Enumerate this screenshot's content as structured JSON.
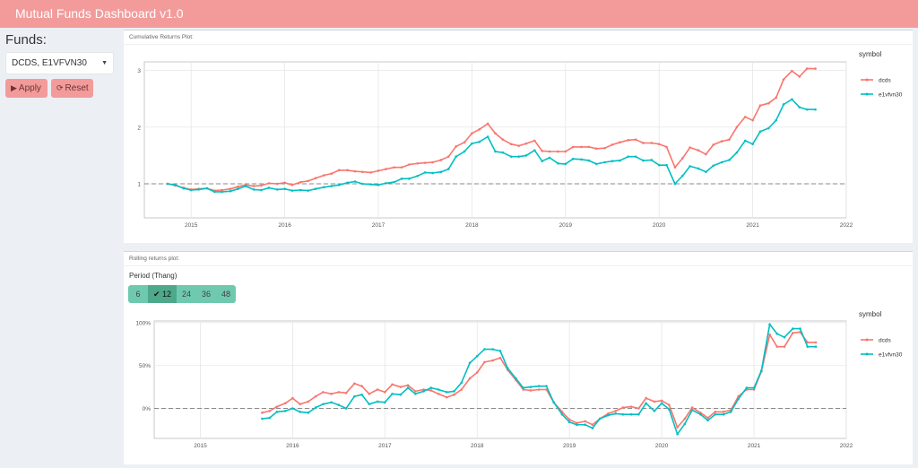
{
  "header": {
    "title": "Mutual Funds Dashboard v1.0"
  },
  "sidebar": {
    "funds_label": "Funds:",
    "fund_select_value": "DCDS, E1VFVN30",
    "apply_label": "Apply",
    "reset_label": "Reset"
  },
  "panel1": {
    "title": "Cumulative Returns Plot:"
  },
  "panel2": {
    "title": "Rolling returns plot:",
    "period_label": "Period (Thang)",
    "periods": [
      "6",
      "12",
      "24",
      "36",
      "48"
    ],
    "selected_period": "12"
  },
  "colors": {
    "header": "#f39b9b",
    "dcds": "#f8766d",
    "e1vfvn30": "#00bfc4",
    "period": "#6fc9ae"
  },
  "chart_data": [
    {
      "type": "line",
      "legend_title": "symbol",
      "legend_position": "right",
      "xticks": [
        "2015",
        "2016",
        "2017",
        "2018",
        "2019",
        "2020",
        "2021",
        "2022"
      ],
      "yticks": [
        "1",
        "2",
        "3"
      ],
      "xlim": [
        2014.5,
        2022.0
      ],
      "ylim": [
        0.4,
        3.15
      ],
      "reference_line": 1,
      "grid": true,
      "x": [
        2014.75,
        2014.83,
        2014.92,
        2015.0,
        2015.08,
        2015.17,
        2015.25,
        2015.33,
        2015.42,
        2015.5,
        2015.58,
        2015.67,
        2015.75,
        2015.83,
        2015.92,
        2016.0,
        2016.08,
        2016.17,
        2016.25,
        2016.33,
        2016.42,
        2016.5,
        2016.58,
        2016.67,
        2016.75,
        2016.83,
        2016.92,
        2017.0,
        2017.08,
        2017.17,
        2017.25,
        2017.33,
        2017.42,
        2017.5,
        2017.58,
        2017.67,
        2017.75,
        2017.83,
        2017.92,
        2018.0,
        2018.08,
        2018.17,
        2018.25,
        2018.33,
        2018.42,
        2018.5,
        2018.58,
        2018.67,
        2018.75,
        2018.83,
        2018.92,
        2019.0,
        2019.08,
        2019.17,
        2019.25,
        2019.33,
        2019.42,
        2019.5,
        2019.58,
        2019.67,
        2019.75,
        2019.83,
        2019.92,
        2020.0,
        2020.08,
        2020.17,
        2020.25,
        2020.33,
        2020.42,
        2020.5,
        2020.58,
        2020.67,
        2020.75,
        2020.83,
        2020.92,
        2021.0,
        2021.08,
        2021.17,
        2021.25,
        2021.33,
        2021.42,
        2021.5,
        2021.58,
        2021.67
      ],
      "series": [
        {
          "name": "dcds",
          "values": [
            1.0,
            0.97,
            0.93,
            0.9,
            0.91,
            0.92,
            0.88,
            0.89,
            0.91,
            0.95,
            0.98,
            0.96,
            0.97,
            1.01,
            1.0,
            1.02,
            0.98,
            1.03,
            1.05,
            1.1,
            1.15,
            1.18,
            1.24,
            1.24,
            1.22,
            1.21,
            1.2,
            1.23,
            1.26,
            1.29,
            1.29,
            1.34,
            1.36,
            1.37,
            1.38,
            1.42,
            1.48,
            1.66,
            1.73,
            1.89,
            1.96,
            2.06,
            1.89,
            1.78,
            1.7,
            1.67,
            1.71,
            1.76,
            1.58,
            1.57,
            1.57,
            1.57,
            1.65,
            1.65,
            1.65,
            1.62,
            1.63,
            1.69,
            1.73,
            1.77,
            1.78,
            1.72,
            1.72,
            1.7,
            1.65,
            1.29,
            1.45,
            1.64,
            1.59,
            1.52,
            1.69,
            1.75,
            1.78,
            2.0,
            2.18,
            2.12,
            2.38,
            2.42,
            2.52,
            2.84,
            2.99,
            2.89,
            3.03,
            3.03
          ]
        },
        {
          "name": "e1vfvn30",
          "values": [
            1.0,
            0.98,
            0.92,
            0.89,
            0.9,
            0.92,
            0.86,
            0.86,
            0.87,
            0.91,
            0.96,
            0.9,
            0.89,
            0.93,
            0.9,
            0.91,
            0.88,
            0.89,
            0.88,
            0.91,
            0.94,
            0.96,
            0.98,
            1.02,
            1.04,
            1.0,
            0.99,
            0.98,
            1.01,
            1.03,
            1.09,
            1.09,
            1.14,
            1.2,
            1.19,
            1.21,
            1.26,
            1.48,
            1.57,
            1.71,
            1.74,
            1.83,
            1.57,
            1.55,
            1.48,
            1.48,
            1.5,
            1.59,
            1.4,
            1.46,
            1.36,
            1.35,
            1.44,
            1.43,
            1.41,
            1.35,
            1.38,
            1.4,
            1.41,
            1.48,
            1.48,
            1.41,
            1.42,
            1.33,
            1.33,
            1.0,
            1.14,
            1.31,
            1.27,
            1.21,
            1.32,
            1.38,
            1.42,
            1.55,
            1.76,
            1.7,
            1.92,
            1.98,
            2.12,
            2.4,
            2.49,
            2.35,
            2.31,
            2.31
          ]
        }
      ]
    },
    {
      "type": "line",
      "legend_title": "symbol",
      "legend_position": "right",
      "xticks": [
        "2015",
        "2016",
        "2017",
        "2018",
        "2019",
        "2020",
        "2021",
        "2022"
      ],
      "yticks": [
        "0%",
        "50%",
        "100%"
      ],
      "xlim": [
        2014.5,
        2022.0
      ],
      "ylim": [
        -0.35,
        1.02
      ],
      "reference_line": 0,
      "grid": true,
      "x": [
        2015.67,
        2015.75,
        2015.83,
        2015.92,
        2016.0,
        2016.08,
        2016.17,
        2016.25,
        2016.33,
        2016.42,
        2016.5,
        2016.58,
        2016.67,
        2016.75,
        2016.83,
        2016.92,
        2017.0,
        2017.08,
        2017.17,
        2017.25,
        2017.33,
        2017.42,
        2017.5,
        2017.58,
        2017.67,
        2017.75,
        2017.83,
        2017.92,
        2018.0,
        2018.08,
        2018.17,
        2018.25,
        2018.33,
        2018.42,
        2018.5,
        2018.58,
        2018.67,
        2018.75,
        2018.83,
        2018.92,
        2019.0,
        2019.08,
        2019.17,
        2019.25,
        2019.33,
        2019.42,
        2019.5,
        2019.58,
        2019.67,
        2019.75,
        2019.83,
        2019.92,
        2020.0,
        2020.08,
        2020.17,
        2020.25,
        2020.33,
        2020.42,
        2020.5,
        2020.58,
        2020.67,
        2020.75,
        2020.83,
        2020.92,
        2021.0,
        2021.08,
        2021.17,
        2021.25,
        2021.33,
        2021.42,
        2021.5,
        2021.58,
        2021.67
      ],
      "series": [
        {
          "name": "dcds",
          "values": [
            -0.05,
            -0.03,
            0.02,
            0.06,
            0.12,
            0.05,
            0.08,
            0.14,
            0.19,
            0.17,
            0.19,
            0.18,
            0.29,
            0.26,
            0.17,
            0.22,
            0.19,
            0.28,
            0.25,
            0.27,
            0.2,
            0.22,
            0.21,
            0.17,
            0.13,
            0.16,
            0.22,
            0.35,
            0.42,
            0.54,
            0.56,
            0.59,
            0.45,
            0.33,
            0.22,
            0.21,
            0.22,
            0.22,
            0.07,
            -0.04,
            -0.13,
            -0.17,
            -0.15,
            -0.19,
            -0.12,
            -0.06,
            -0.03,
            0.01,
            0.02,
            0.0,
            0.12,
            0.08,
            0.09,
            0.04,
            -0.22,
            -0.12,
            0.01,
            -0.05,
            -0.11,
            -0.04,
            -0.04,
            -0.02,
            0.14,
            0.22,
            0.22,
            0.43,
            0.86,
            0.72,
            0.72,
            0.88,
            0.89,
            0.77,
            0.77
          ]
        },
        {
          "name": "e1vfvn30",
          "values": [
            -0.12,
            -0.11,
            -0.04,
            -0.03,
            0.0,
            -0.04,
            -0.05,
            0.01,
            0.05,
            0.07,
            0.04,
            0.0,
            0.14,
            0.16,
            0.05,
            0.08,
            0.07,
            0.17,
            0.16,
            0.24,
            0.17,
            0.2,
            0.24,
            0.22,
            0.19,
            0.2,
            0.3,
            0.53,
            0.61,
            0.69,
            0.69,
            0.67,
            0.47,
            0.35,
            0.24,
            0.25,
            0.26,
            0.26,
            0.07,
            -0.07,
            -0.16,
            -0.19,
            -0.19,
            -0.23,
            -0.12,
            -0.08,
            -0.06,
            -0.07,
            -0.07,
            -0.07,
            0.06,
            -0.03,
            0.06,
            -0.01,
            -0.3,
            -0.18,
            -0.02,
            -0.07,
            -0.14,
            -0.07,
            -0.07,
            -0.04,
            0.11,
            0.24,
            0.24,
            0.44,
            0.98,
            0.87,
            0.83,
            0.93,
            0.93,
            0.72,
            0.72
          ]
        }
      ]
    }
  ]
}
